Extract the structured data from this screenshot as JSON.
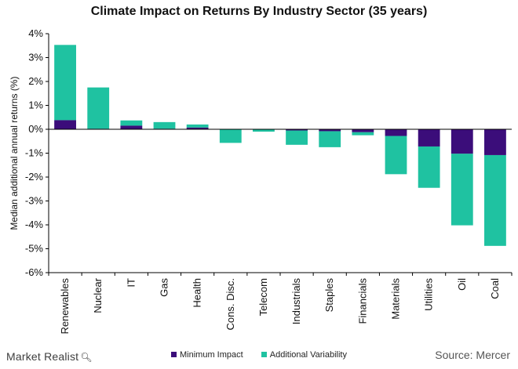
{
  "brand": {
    "name": "Market Realist",
    "icon": "magnifier-icon"
  },
  "source": "Source: Mercer",
  "colors": {
    "minimum": "#3b0d7a",
    "additional": "#1fc2a1",
    "axis": "#000000"
  },
  "chart_data": {
    "type": "bar",
    "stacked": true,
    "title": "Climate Impact on Returns By Industry Sector (35 years)",
    "xlabel": "",
    "ylabel": "Median additional annual returns (%)",
    "ylim": [
      -6,
      4
    ],
    "yticks": [
      4,
      3,
      2,
      1,
      0,
      -1,
      -2,
      -3,
      -4,
      -5,
      -6
    ],
    "ytick_labels": [
      "4%",
      "3%",
      "2%",
      "1%",
      "0%",
      "-1%",
      "-2%",
      "-3%",
      "-4%",
      "-5%",
      "-6%"
    ],
    "grid": false,
    "legend_position": "bottom",
    "categories": [
      "Renewables",
      "Nuclear",
      "IT",
      "Gas",
      "Health",
      "Cons. Disc.",
      "Telecom",
      "Industrials",
      "Staples",
      "Financials",
      "Materials",
      "Utilities",
      "Oil",
      "Coal"
    ],
    "series": [
      {
        "name": "Minimum Impact",
        "values": [
          0.38,
          0.02,
          0.15,
          0.02,
          0.07,
          0.0,
          0.0,
          -0.05,
          -0.08,
          -0.12,
          -0.28,
          -0.72,
          -1.02,
          -1.08
        ]
      },
      {
        "name": "Additional Variability",
        "values": [
          3.15,
          1.73,
          0.22,
          0.28,
          0.13,
          -0.57,
          -0.1,
          -0.6,
          -0.67,
          -0.13,
          -1.6,
          -1.73,
          -3.0,
          -3.8
        ]
      }
    ]
  }
}
